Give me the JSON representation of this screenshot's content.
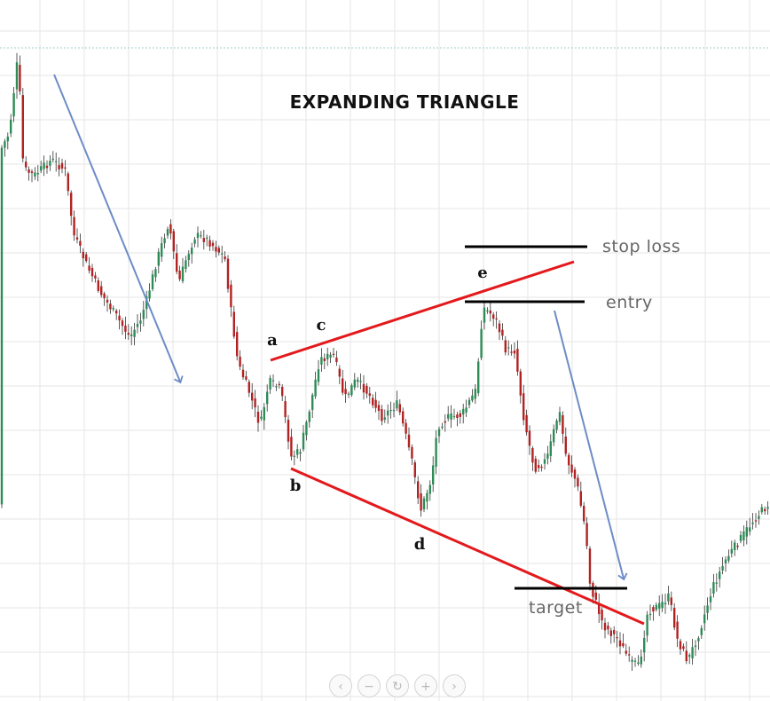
{
  "chart_data": {
    "type": "candlestick",
    "title": "EXPANDING TRIANGLE",
    "points": [
      {
        "label": "a"
      },
      {
        "label": "b"
      },
      {
        "label": "c"
      },
      {
        "label": "d"
      },
      {
        "label": "e"
      }
    ],
    "levels": [
      {
        "label": "stop loss"
      },
      {
        "label": "entry"
      },
      {
        "label": "target"
      }
    ],
    "colors": {
      "up_candle": "#2e8b57",
      "down_candle": "#b22222",
      "trendline": "#e3191c",
      "arrow": "#6d8cc6",
      "level_line": "#000000",
      "grid": "#e6e6e6"
    }
  },
  "controls": [
    {
      "name": "scroll-left-button",
      "glyph": "‹"
    },
    {
      "name": "zoom-out-button",
      "glyph": "−"
    },
    {
      "name": "reset-button",
      "glyph": "↻"
    },
    {
      "name": "zoom-in-button",
      "glyph": "+"
    },
    {
      "name": "scroll-right-button",
      "glyph": "›"
    }
  ]
}
